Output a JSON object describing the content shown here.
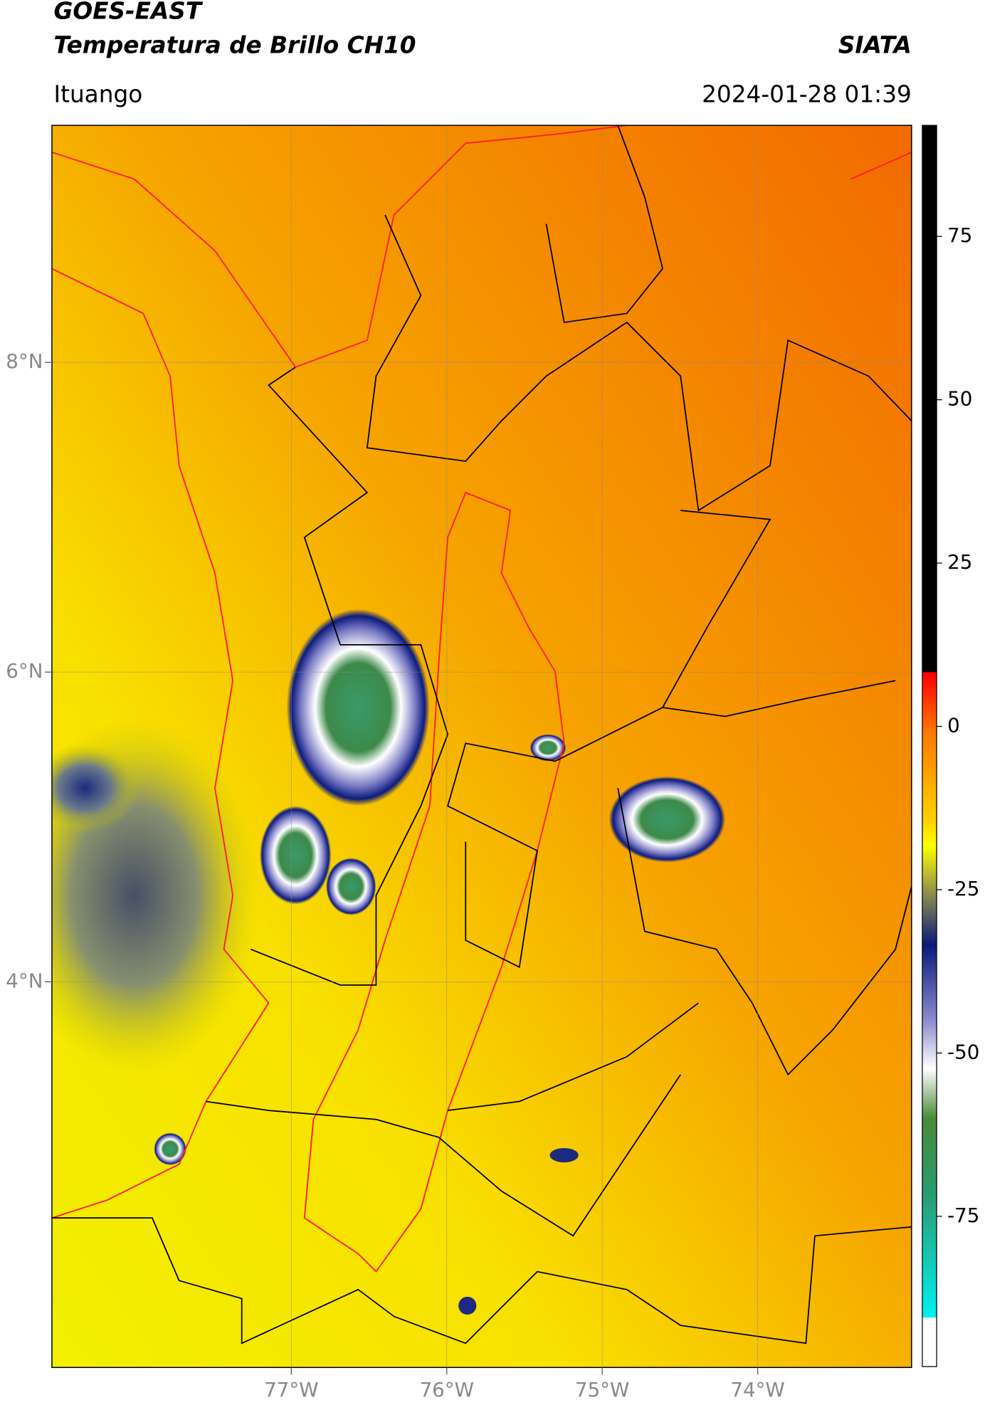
{
  "header": {
    "title": "GOES-EAST",
    "subtitle": "Temperatura de Brillo CH10",
    "credit": "SIATA",
    "location": "Ituango",
    "timestamp": "2024-01-28 01:39"
  },
  "map": {
    "xlim": [
      -78.54,
      -73.01
    ],
    "ylim": [
      1.51,
      9.53
    ],
    "xticks": [
      {
        "value": -77,
        "label": "77°W"
      },
      {
        "value": -76,
        "label": "76°W"
      },
      {
        "value": -75,
        "label": "75°W"
      },
      {
        "value": -74,
        "label": "74°W"
      }
    ],
    "yticks": [
      {
        "value": 8,
        "label": "8°N"
      },
      {
        "value": 6,
        "label": "6°N"
      },
      {
        "value": 4,
        "label": "4°N"
      }
    ],
    "grid": true
  },
  "colorbar": {
    "ylim": [
      -98,
      92
    ],
    "yticks": [
      75,
      50,
      25,
      0,
      -25,
      -50,
      -75
    ]
  }
}
